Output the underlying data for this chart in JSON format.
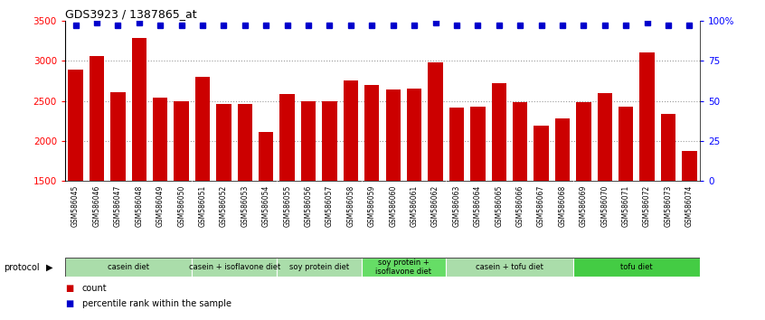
{
  "title": "GDS3923 / 1387865_at",
  "samples": [
    "GSM586045",
    "GSM586046",
    "GSM586047",
    "GSM586048",
    "GSM586049",
    "GSM586050",
    "GSM586051",
    "GSM586052",
    "GSM586053",
    "GSM586054",
    "GSM586055",
    "GSM586056",
    "GSM586057",
    "GSM586058",
    "GSM586059",
    "GSM586060",
    "GSM586061",
    "GSM586062",
    "GSM586063",
    "GSM586064",
    "GSM586065",
    "GSM586066",
    "GSM586067",
    "GSM586068",
    "GSM586069",
    "GSM586070",
    "GSM586071",
    "GSM586072",
    "GSM586073",
    "GSM586074"
  ],
  "counts": [
    2890,
    3060,
    2610,
    3280,
    2540,
    2500,
    2800,
    2460,
    2460,
    2110,
    2580,
    2490,
    2500,
    2760,
    2700,
    2640,
    2650,
    2980,
    2410,
    2430,
    2720,
    2480,
    2190,
    2280,
    2480,
    2600,
    2430,
    3100,
    2340,
    1870
  ],
  "percentile_ranks": [
    97,
    99,
    97,
    99,
    97,
    97,
    97,
    97,
    97,
    97,
    97,
    97,
    97,
    97,
    97,
    97,
    97,
    99,
    97,
    97,
    97,
    97,
    97,
    97,
    97,
    97,
    97,
    99,
    97,
    97
  ],
  "ylim_left": [
    1500,
    3500
  ],
  "ylim_right": [
    0,
    100
  ],
  "yticks_left": [
    1500,
    2000,
    2500,
    3000,
    3500
  ],
  "yticks_right": [
    0,
    25,
    50,
    75,
    100
  ],
  "ytick_labels_right": [
    "0",
    "25",
    "50",
    "75",
    "100%"
  ],
  "bar_color": "#cc0000",
  "dot_color": "#0000cc",
  "grid_color": "#999999",
  "groups": [
    {
      "label": "casein diet",
      "start": 0,
      "end": 5,
      "color": "#aaddaa"
    },
    {
      "label": "casein + isoflavone diet",
      "start": 6,
      "end": 9,
      "color": "#aaddaa"
    },
    {
      "label": "soy protein diet",
      "start": 10,
      "end": 13,
      "color": "#aaddaa"
    },
    {
      "label": "soy protein +\nisoflavone diet",
      "start": 14,
      "end": 17,
      "color": "#66dd66"
    },
    {
      "label": "casein + tofu diet",
      "start": 18,
      "end": 23,
      "color": "#aaddaa"
    },
    {
      "label": "tofu diet",
      "start": 24,
      "end": 29,
      "color": "#44cc44"
    }
  ],
  "protocol_label": "protocol",
  "legend_count_label": "count",
  "legend_pct_label": "percentile rank within the sample"
}
